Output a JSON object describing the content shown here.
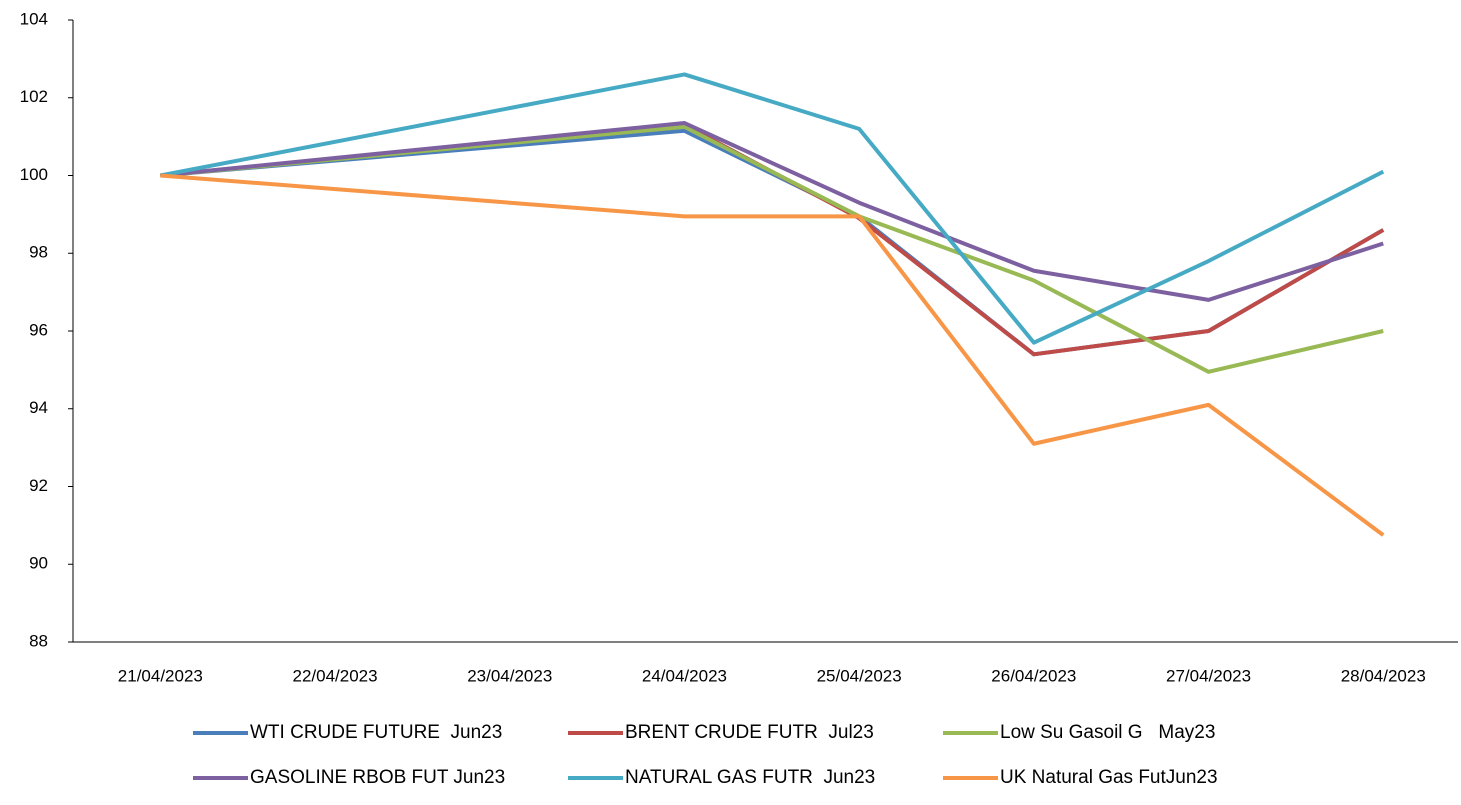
{
  "chart_data": {
    "type": "line",
    "xticks": [
      "21/04/2023",
      "22/04/2023",
      "23/04/2023",
      "24/04/2023",
      "25/04/2023",
      "26/04/2023",
      "27/04/2023",
      "28/04/2023"
    ],
    "x": [
      "21/04/2023",
      "24/04/2023",
      "25/04/2023",
      "26/04/2023",
      "27/04/2023",
      "28/04/2023"
    ],
    "series": [
      {
        "name": "WTI CRUDE FUTURE  Jun23",
        "color": "#4a7ebb",
        "values": [
          100,
          101.15,
          98.95,
          95.4,
          96.0,
          98.6
        ]
      },
      {
        "name": "BRENT CRUDE FUTR  Jul23",
        "color": "#be4b48",
        "values": [
          100,
          101.3,
          98.9,
          95.4,
          96.0,
          98.6
        ]
      },
      {
        "name": "Low Su Gasoil G   May23",
        "color": "#98b954",
        "values": [
          100,
          101.25,
          98.95,
          97.3,
          94.95,
          96.0
        ]
      },
      {
        "name": "GASOLINE RBOB FUT Jun23",
        "color": "#7d60a0",
        "values": [
          100,
          101.35,
          99.3,
          97.55,
          96.8,
          98.25
        ]
      },
      {
        "name": "NATURAL GAS FUTR  Jun23",
        "color": "#46aac5",
        "values": [
          100,
          102.6,
          101.2,
          95.7,
          97.8,
          100.1
        ]
      },
      {
        "name": "UK Natural Gas FutJun23",
        "color": "#f79646",
        "values": [
          100,
          98.95,
          98.95,
          93.1,
          94.1,
          90.75
        ]
      }
    ],
    "ylim": [
      88,
      104
    ],
    "yticks": [
      88,
      90,
      92,
      94,
      96,
      98,
      100,
      102,
      104
    ]
  }
}
